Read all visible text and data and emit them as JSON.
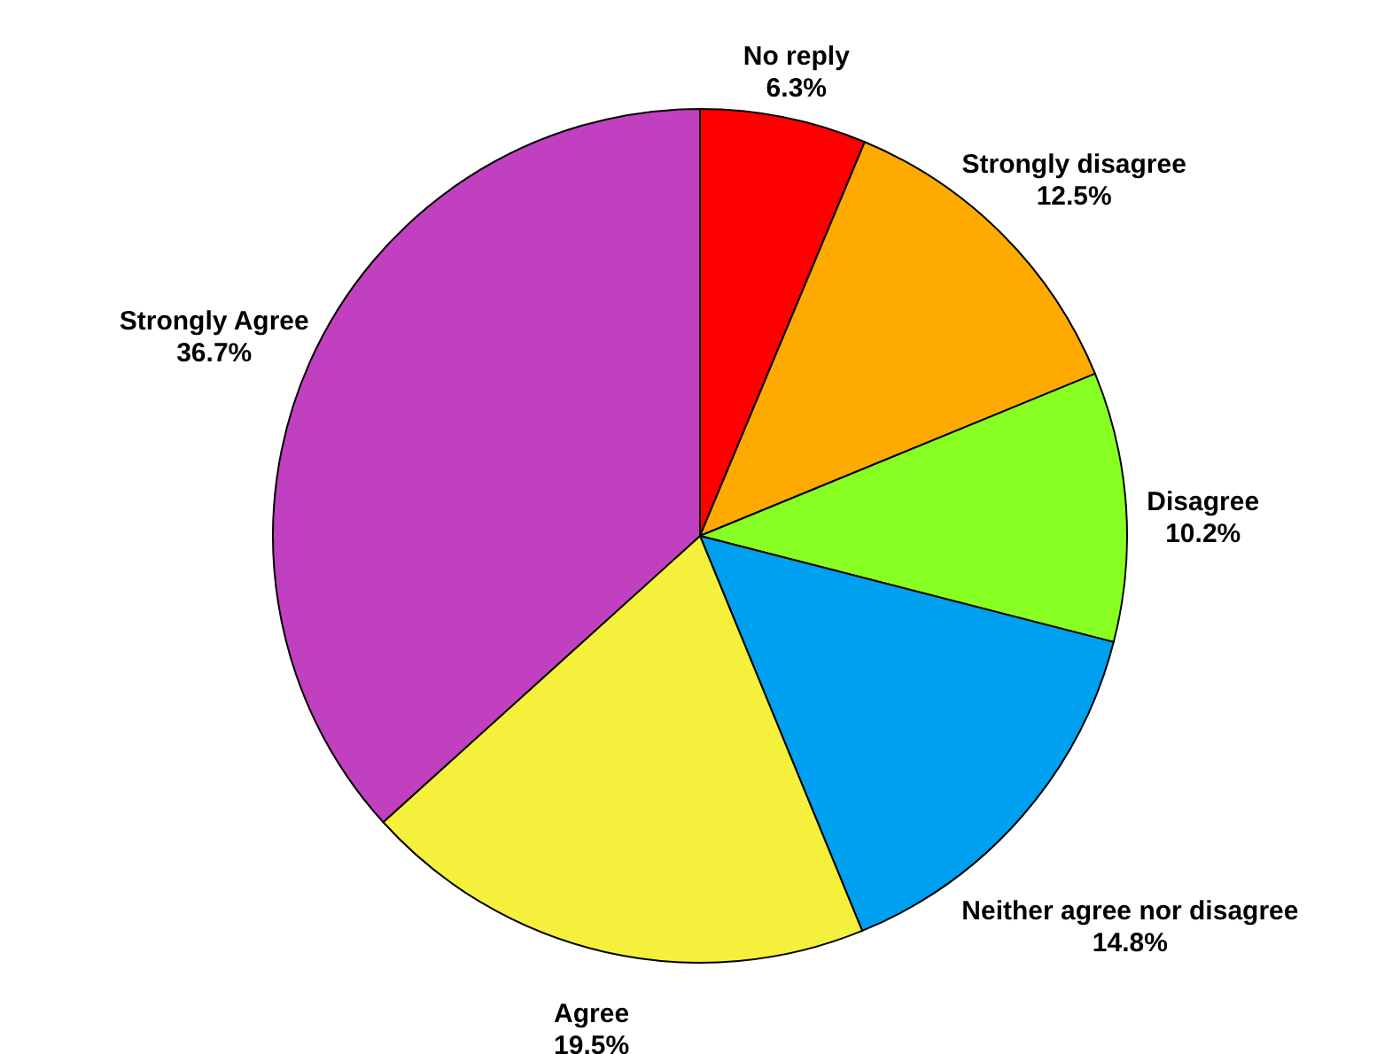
{
  "chart_data": {
    "type": "pie",
    "categories": [
      "No reply",
      "Strongly disagree",
      "Disagree",
      "Neither agree nor disagree",
      "Agree",
      "Strongly Agree"
    ],
    "values": [
      6.3,
      12.5,
      10.2,
      14.8,
      19.5,
      36.7
    ],
    "value_labels": [
      "6.3%",
      "12.5%",
      "10.2%",
      "14.8%",
      "19.5%",
      "36.7%"
    ],
    "colors": [
      "#ff0000",
      "#ffaa00",
      "#88ff22",
      "#00a0f0",
      "#f5f03c",
      "#c040c0"
    ]
  }
}
